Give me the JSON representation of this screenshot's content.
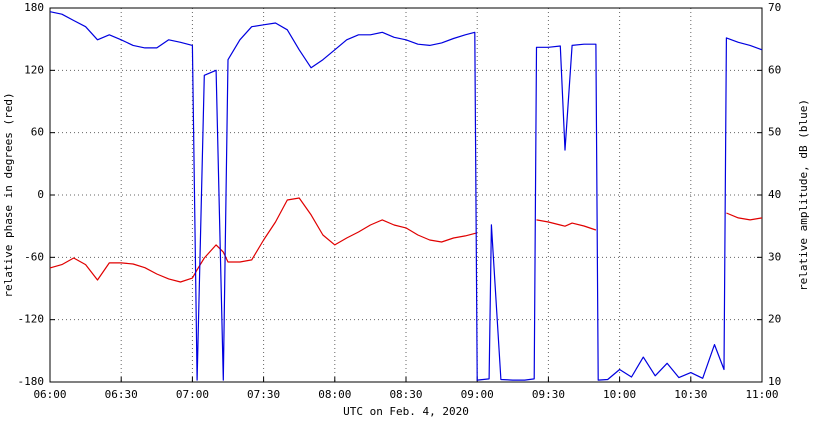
{
  "chart_data": {
    "type": "line",
    "xlabel": "UTC on Feb. 4, 2020",
    "ylabel": "relative phase in degrees (red)",
    "y2label": "relative amplitude, dB (blue)",
    "x": [
      "06:00",
      "06:05",
      "06:10",
      "06:15",
      "06:20",
      "06:25",
      "06:30",
      "06:35",
      "06:40",
      "06:45",
      "06:50",
      "06:55",
      "07:00",
      "07:02",
      "07:05",
      "07:10",
      "07:13",
      "07:15",
      "07:20",
      "07:25",
      "07:30",
      "07:35",
      "07:40",
      "07:45",
      "07:50",
      "07:55",
      "08:00",
      "08:05",
      "08:10",
      "08:15",
      "08:20",
      "08:25",
      "08:30",
      "08:35",
      "08:40",
      "08:45",
      "08:50",
      "08:55",
      "08:59",
      "09:00",
      "09:05",
      "09:06",
      "09:10",
      "09:15",
      "09:20",
      "09:24",
      "09:25",
      "09:30",
      "09:35",
      "09:37",
      "09:40",
      "09:45",
      "09:50",
      "09:51",
      "09:55",
      "10:00",
      "10:05",
      "10:10",
      "10:15",
      "10:20",
      "10:25",
      "10:30",
      "10:35",
      "10:40",
      "10:44",
      "10:45",
      "10:50",
      "10:55",
      "11:00"
    ],
    "series": [
      {
        "name": "relative phase",
        "color": "#e00000",
        "axis": "y",
        "values": [
          -70.2,
          -67,
          -60.6,
          -67,
          -81.8,
          -65.4,
          -65.4,
          -66.4,
          -70,
          -76,
          -80.8,
          -83.7,
          -80,
          -72,
          -60.6,
          -48,
          -55,
          -64.5,
          -64.5,
          -62.5,
          -43.3,
          -26,
          -4.8,
          -2.9,
          -19.2,
          -38.5,
          -48,
          -41.4,
          -35.6,
          -28.9,
          -24,
          -28.9,
          -31.7,
          -38.5,
          -43.3,
          -45.2,
          -41.4,
          -39.4,
          -37,
          -36.5,
          null,
          null,
          null,
          null,
          null,
          null,
          -24,
          -26,
          -28.9,
          -30,
          -27,
          -29.8,
          -33.7,
          null,
          null,
          null,
          null,
          null,
          null,
          null,
          null,
          null,
          null,
          null,
          null,
          -17.3,
          -22,
          -24,
          -22
        ]
      },
      {
        "name": "relative amplitude",
        "color": "#0000e0",
        "axis": "y2",
        "values": [
          69.4,
          69,
          68,
          67,
          64.9,
          65.7,
          64.9,
          64,
          63.6,
          63.6,
          64.9,
          64.5,
          64,
          10.3,
          59.2,
          60,
          10.3,
          61.7,
          64.9,
          67,
          67.3,
          67.6,
          66.5,
          63.3,
          60.4,
          61.7,
          63.3,
          64.9,
          65.7,
          65.7,
          66.1,
          65.3,
          64.9,
          64.2,
          64,
          64.4,
          65.1,
          65.7,
          66.1,
          10.3,
          10.5,
          35.2,
          10.4,
          10.3,
          10.3,
          10.5,
          63.7,
          63.7,
          63.9,
          47.2,
          64,
          64.2,
          64.2,
          10.3,
          10.4,
          12,
          10.8,
          14,
          11,
          13,
          10.7,
          11.5,
          10.6,
          16,
          12,
          65.2,
          64.5,
          64,
          63.3
        ]
      }
    ],
    "xlim": [
      "06:00",
      "11:00"
    ],
    "xticks": [
      "06:00",
      "06:30",
      "07:00",
      "07:30",
      "08:00",
      "08:30",
      "09:00",
      "09:30",
      "10:00",
      "10:30",
      "11:00"
    ],
    "ylim": [
      -180,
      180
    ],
    "yticks": [
      -180,
      -120,
      -60,
      0,
      60,
      120,
      180
    ],
    "y2lim": [
      10,
      70
    ],
    "y2ticks": [
      10,
      20,
      30,
      40,
      50,
      60,
      70
    ],
    "grid": true
  }
}
